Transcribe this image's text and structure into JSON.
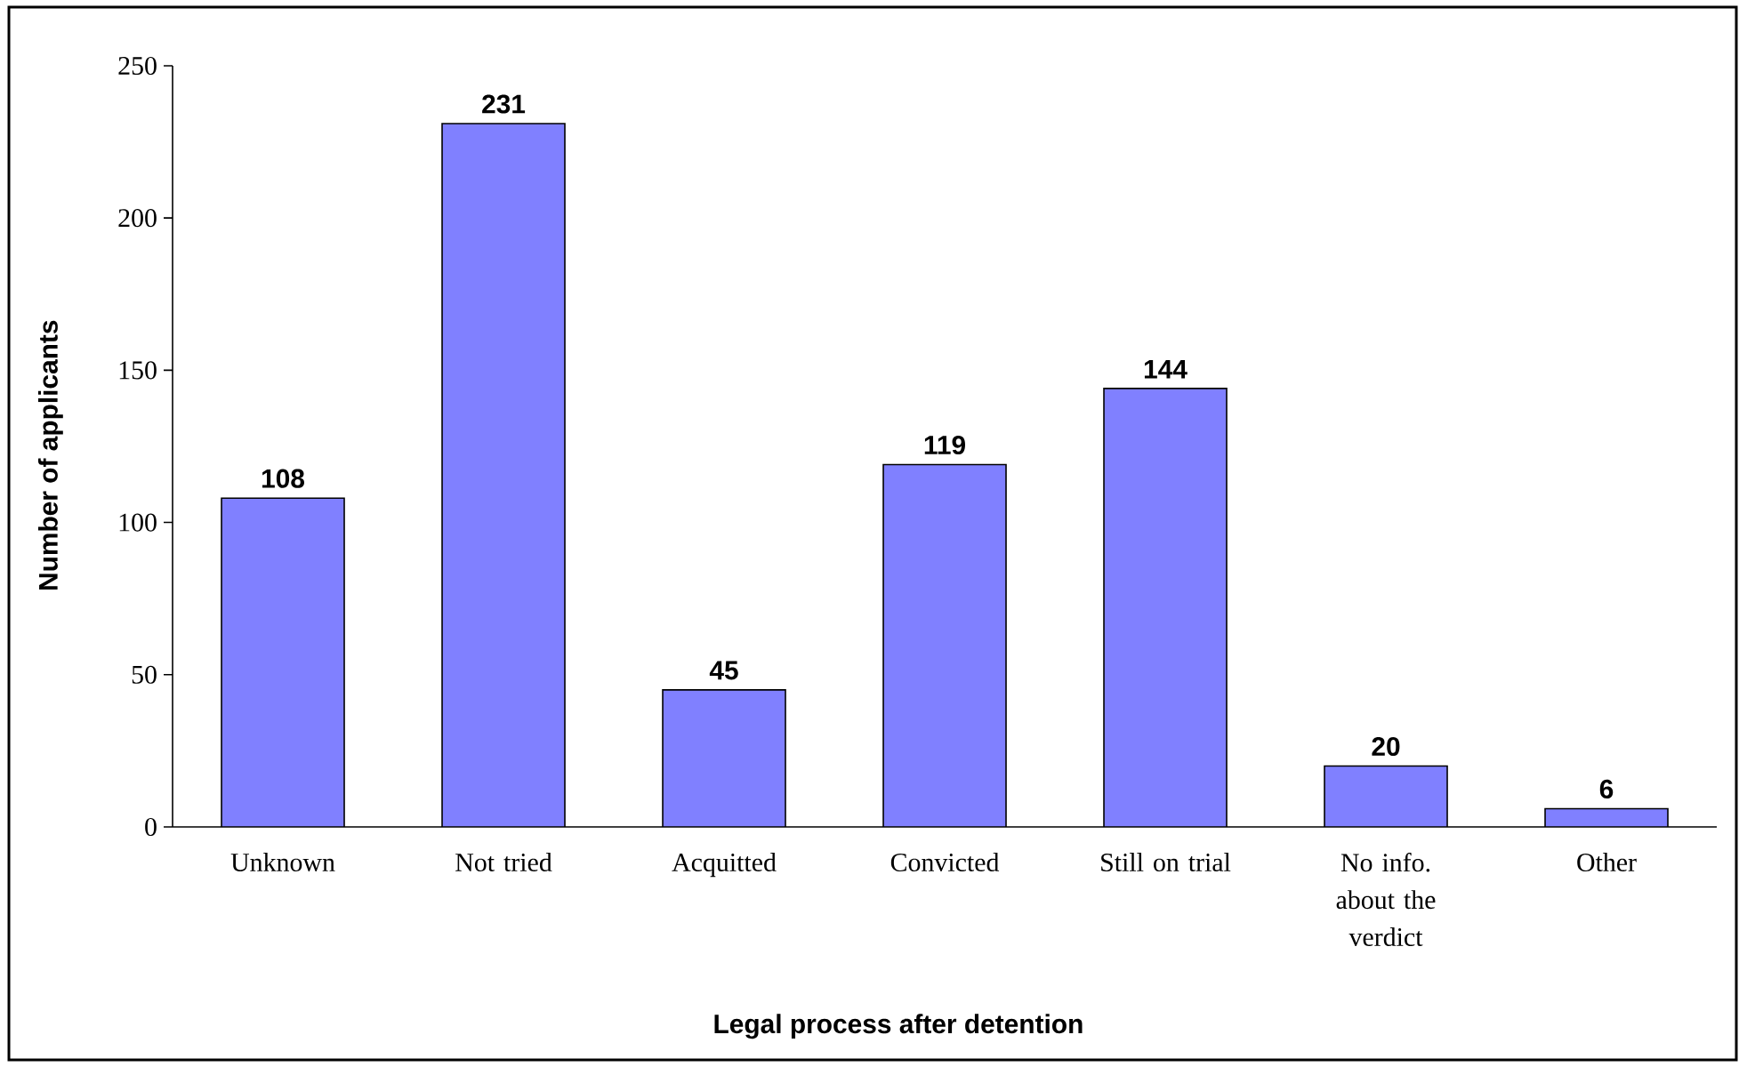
{
  "chart_data": {
    "type": "bar",
    "xlabel": "Legal process after detention",
    "ylabel": "Number of applicants",
    "categories": [
      "Unknown",
      "Not tried",
      "Acquitted",
      "Convicted",
      "Still on trial",
      "No info. about the verdict",
      "Other"
    ],
    "values": [
      108,
      231,
      45,
      119,
      144,
      20,
      6
    ],
    "color": "#8080ff",
    "ylim": [
      0,
      250
    ],
    "yticks": [
      0,
      50,
      100,
      150,
      200,
      250
    ],
    "data_labels": true
  }
}
